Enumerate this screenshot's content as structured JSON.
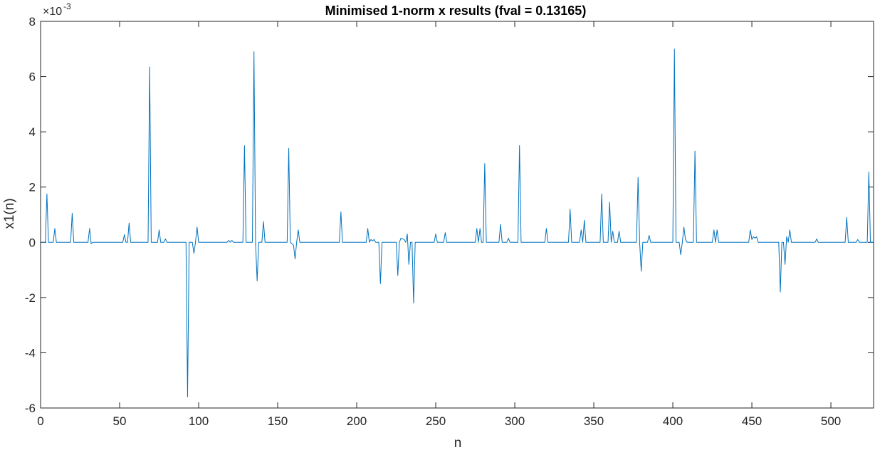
{
  "chart_data": {
    "type": "line",
    "title": "Minimised 1-norm x results (fval = 0.13165)",
    "xlabel": "n",
    "ylabel": "x1(n)",
    "y_exponent_base": "×10",
    "y_exponent_power": "-3",
    "xlim": [
      0,
      527
    ],
    "ylim": [
      -6,
      8
    ],
    "grid": false,
    "box": true,
    "x_ticks": [
      0,
      50,
      100,
      150,
      200,
      250,
      300,
      350,
      400,
      450,
      500
    ],
    "x_tick_labels": [
      "0",
      "50",
      "100",
      "150",
      "200",
      "250",
      "300",
      "350",
      "400",
      "450",
      "500"
    ],
    "y_ticks": [
      -6,
      -4,
      -2,
      0,
      2,
      4,
      6,
      8
    ],
    "y_tick_labels": [
      "-6",
      "-4",
      "-2",
      "0",
      "2",
      "4",
      "6",
      "8"
    ],
    "series": [
      {
        "color": "#0072bd",
        "points": [
          [
            1,
            0
          ],
          [
            3,
            0
          ],
          [
            4,
            1.75
          ],
          [
            5,
            0
          ],
          [
            8,
            0
          ],
          [
            9,
            0.5
          ],
          [
            10,
            0
          ],
          [
            19,
            0
          ],
          [
            20,
            1.05
          ],
          [
            21,
            0
          ],
          [
            30,
            0
          ],
          [
            31,
            0.5
          ],
          [
            32,
            -0.05
          ],
          [
            33,
            0
          ],
          [
            52,
            0
          ],
          [
            53,
            0.28
          ],
          [
            54,
            0
          ],
          [
            55,
            0
          ],
          [
            56,
            0.7
          ],
          [
            57,
            0
          ],
          [
            68,
            0
          ],
          [
            69,
            6.35
          ],
          [
            70,
            0
          ],
          [
            74,
            0
          ],
          [
            75,
            0.45
          ],
          [
            76,
            0
          ],
          [
            78,
            0
          ],
          [
            79,
            0.12
          ],
          [
            80,
            0
          ],
          [
            92,
            0
          ],
          [
            93,
            -5.6
          ],
          [
            94,
            0
          ],
          [
            96,
            0
          ],
          [
            97,
            -0.4
          ],
          [
            98,
            0
          ],
          [
            99,
            0.55
          ],
          [
            100,
            0
          ],
          [
            118,
            0
          ],
          [
            119,
            0.07
          ],
          [
            120,
            0
          ],
          [
            121,
            0.07
          ],
          [
            122,
            0
          ],
          [
            128,
            0
          ],
          [
            129,
            3.5
          ],
          [
            130,
            0
          ],
          [
            134,
            0
          ],
          [
            135,
            6.9
          ],
          [
            136,
            0
          ],
          [
            137,
            -1.4
          ],
          [
            138,
            0
          ],
          [
            140,
            0
          ],
          [
            141,
            0.75
          ],
          [
            142,
            0
          ],
          [
            156,
            0
          ],
          [
            157,
            3.4
          ],
          [
            158,
            0
          ],
          [
            160,
            -0.1
          ],
          [
            161,
            -0.6
          ],
          [
            162,
            0
          ],
          [
            163,
            0.45
          ],
          [
            164,
            0
          ],
          [
            189,
            0
          ],
          [
            190,
            1.1
          ],
          [
            191,
            0
          ],
          [
            206,
            0
          ],
          [
            207,
            0.5
          ],
          [
            208,
            0
          ],
          [
            209,
            0.1
          ],
          [
            210,
            0.05
          ],
          [
            211,
            0.1
          ],
          [
            212,
            0
          ],
          [
            214,
            0
          ],
          [
            215,
            -1.5
          ],
          [
            216,
            0
          ],
          [
            225,
            0
          ],
          [
            226,
            -1.2
          ],
          [
            227,
            0
          ],
          [
            228,
            0.15
          ],
          [
            230,
            0.1
          ],
          [
            231,
            0
          ],
          [
            232,
            0.3
          ],
          [
            233,
            -0.8
          ],
          [
            234,
            0
          ],
          [
            235,
            0
          ],
          [
            236,
            -2.2
          ],
          [
            237,
            0
          ],
          [
            249,
            0
          ],
          [
            250,
            0.3
          ],
          [
            251,
            0
          ],
          [
            255,
            0
          ],
          [
            256,
            0.35
          ],
          [
            257,
            0
          ],
          [
            275,
            0
          ],
          [
            276,
            0.5
          ],
          [
            277,
            0
          ],
          [
            278,
            0.5
          ],
          [
            279,
            0
          ],
          [
            280,
            0
          ],
          [
            281,
            2.85
          ],
          [
            282,
            0
          ],
          [
            290,
            0
          ],
          [
            291,
            0.65
          ],
          [
            292,
            0
          ],
          [
            295,
            0
          ],
          [
            296,
            0.15
          ],
          [
            297,
            0
          ],
          [
            302,
            0
          ],
          [
            303,
            3.5
          ],
          [
            304,
            0
          ],
          [
            319,
            0
          ],
          [
            320,
            0.5
          ],
          [
            321,
            0
          ],
          [
            334,
            0
          ],
          [
            335,
            1.2
          ],
          [
            336,
            0
          ],
          [
            341,
            0
          ],
          [
            342,
            0.45
          ],
          [
            343,
            0
          ],
          [
            344,
            0.8
          ],
          [
            345,
            0
          ],
          [
            354,
            0
          ],
          [
            355,
            1.75
          ],
          [
            356,
            0
          ],
          [
            359,
            0
          ],
          [
            360,
            1.45
          ],
          [
            361,
            0
          ],
          [
            362,
            0.4
          ],
          [
            363,
            0
          ],
          [
            365,
            0
          ],
          [
            366,
            0.4
          ],
          [
            367,
            0
          ],
          [
            377,
            0
          ],
          [
            378,
            2.35
          ],
          [
            379,
            0
          ],
          [
            380,
            -1.05
          ],
          [
            381,
            0
          ],
          [
            384,
            0
          ],
          [
            385,
            0.25
          ],
          [
            386,
            0
          ],
          [
            400,
            0
          ],
          [
            401,
            7.0
          ],
          [
            402,
            0
          ],
          [
            404,
            0
          ],
          [
            405,
            -0.45
          ],
          [
            406,
            0
          ],
          [
            407,
            0.55
          ],
          [
            408,
            0.1
          ],
          [
            409,
            0
          ],
          [
            413,
            0
          ],
          [
            414,
            3.3
          ],
          [
            415,
            0
          ],
          [
            425,
            0
          ],
          [
            426,
            0.45
          ],
          [
            427,
            0
          ],
          [
            428,
            0.45
          ],
          [
            429,
            0
          ],
          [
            448,
            0
          ],
          [
            449,
            0.45
          ],
          [
            450,
            0.1
          ],
          [
            451,
            0.2
          ],
          [
            452,
            0.15
          ],
          [
            453,
            0.2
          ],
          [
            454,
            0
          ],
          [
            467,
            0
          ],
          [
            468,
            -1.8
          ],
          [
            469,
            0
          ],
          [
            470,
            0
          ],
          [
            471,
            -0.8
          ],
          [
            472,
            0.2
          ],
          [
            473,
            0
          ],
          [
            474,
            0.45
          ],
          [
            475,
            0
          ],
          [
            490,
            0
          ],
          [
            491,
            0.12
          ],
          [
            492,
            0
          ],
          [
            509,
            0
          ],
          [
            510,
            0.9
          ],
          [
            511,
            0
          ],
          [
            516,
            0
          ],
          [
            517,
            0.1
          ],
          [
            518,
            0
          ],
          [
            523,
            0
          ],
          [
            524,
            2.55
          ],
          [
            525,
            0
          ],
          [
            527,
            0
          ]
        ]
      }
    ]
  }
}
